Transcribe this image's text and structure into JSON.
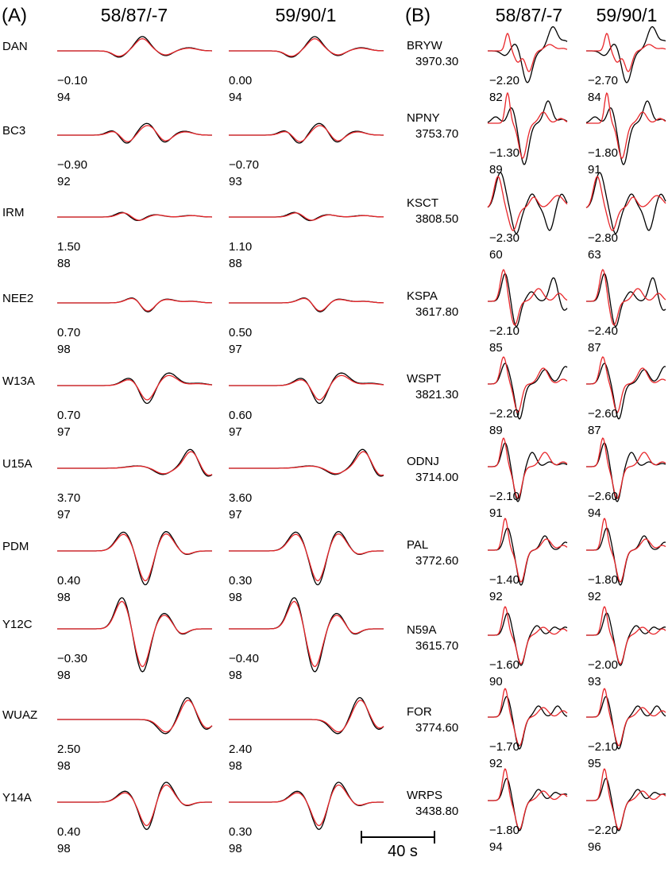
{
  "panels": [
    {
      "label": "(A)",
      "columns": [
        "58/87/-7",
        "59/90/1"
      ]
    },
    {
      "label": "(B)",
      "columns": [
        "58/87/-7",
        "59/90/1"
      ]
    }
  ],
  "scale_bar": {
    "label": "40 s",
    "seconds": 40
  },
  "colors": {
    "observed": "#000000",
    "synthetic": "#e8262a"
  },
  "chart_data": [
    {
      "type": "line",
      "panel": "(A)",
      "description_of_values": "per station: time shift (s) and fit value for each model column",
      "stations": [
        {
          "name": "DAN",
          "values": [
            [
              "−0.10",
              "94"
            ],
            [
              "0.00",
              "94"
            ]
          ]
        },
        {
          "name": "BC3",
          "values": [
            [
              "−0.90",
              "92"
            ],
            [
              "−0.70",
              "93"
            ]
          ]
        },
        {
          "name": "IRM",
          "values": [
            [
              "1.50",
              "88"
            ],
            [
              "1.10",
              "88"
            ]
          ]
        },
        {
          "name": "NEE2",
          "values": [
            [
              "0.70",
              "98"
            ],
            [
              "0.50",
              "97"
            ]
          ]
        },
        {
          "name": "W13A",
          "values": [
            [
              "0.70",
              "97"
            ],
            [
              "0.60",
              "97"
            ]
          ]
        },
        {
          "name": "U15A",
          "values": [
            [
              "3.70",
              "97"
            ],
            [
              "3.60",
              "97"
            ]
          ]
        },
        {
          "name": "PDM",
          "values": [
            [
              "0.40",
              "98"
            ],
            [
              "0.30",
              "98"
            ]
          ]
        },
        {
          "name": "Y12C",
          "values": [
            [
              "−0.30",
              "98"
            ],
            [
              "−0.40",
              "98"
            ]
          ]
        },
        {
          "name": "WUAZ",
          "values": [
            [
              "2.50",
              "98"
            ],
            [
              "2.40",
              "98"
            ]
          ]
        },
        {
          "name": "Y14A",
          "values": [
            [
              "0.40",
              "98"
            ],
            [
              "0.30",
              "98"
            ]
          ]
        }
      ]
    },
    {
      "type": "line",
      "panel": "(B)",
      "stations": [
        {
          "name": "BRYW",
          "distance": "3970.30",
          "values": [
            [
              "−2.20",
              "82"
            ],
            [
              "−2.70",
              "84"
            ]
          ]
        },
        {
          "name": "NPNY",
          "distance": "3753.70",
          "values": [
            [
              "−1.30",
              "89"
            ],
            [
              "−1.80",
              "91"
            ]
          ]
        },
        {
          "name": "KSCT",
          "distance": "3808.50",
          "values": [
            [
              "−2.30",
              "60"
            ],
            [
              "−2.80",
              "63"
            ]
          ]
        },
        {
          "name": "KSPA",
          "distance": "3617.80",
          "values": [
            [
              "−2.10",
              "85"
            ],
            [
              "−2.40",
              "87"
            ]
          ]
        },
        {
          "name": "WSPT",
          "distance": "3821.30",
          "values": [
            [
              "−2.20",
              "89"
            ],
            [
              "−2.60",
              "87"
            ]
          ]
        },
        {
          "name": "ODNJ",
          "distance": "3714.00",
          "values": [
            [
              "−2.10",
              "91"
            ],
            [
              "−2.60",
              "94"
            ]
          ]
        },
        {
          "name": "PAL",
          "distance": "3772.60",
          "values": [
            [
              "−1.40",
              "92"
            ],
            [
              "−1.80",
              "92"
            ]
          ]
        },
        {
          "name": "N59A",
          "distance": "3615.70",
          "values": [
            [
              "−1.60",
              "90"
            ],
            [
              "−2.00",
              "93"
            ]
          ]
        },
        {
          "name": "FOR",
          "distance": "3774.60",
          "values": [
            [
              "−1.70",
              "92"
            ],
            [
              "−2.10",
              "95"
            ]
          ]
        },
        {
          "name": "WRPS",
          "distance": "3438.80",
          "values": [
            [
              "−1.80",
              "94"
            ],
            [
              "−2.20",
              "96"
            ]
          ]
        }
      ]
    }
  ]
}
